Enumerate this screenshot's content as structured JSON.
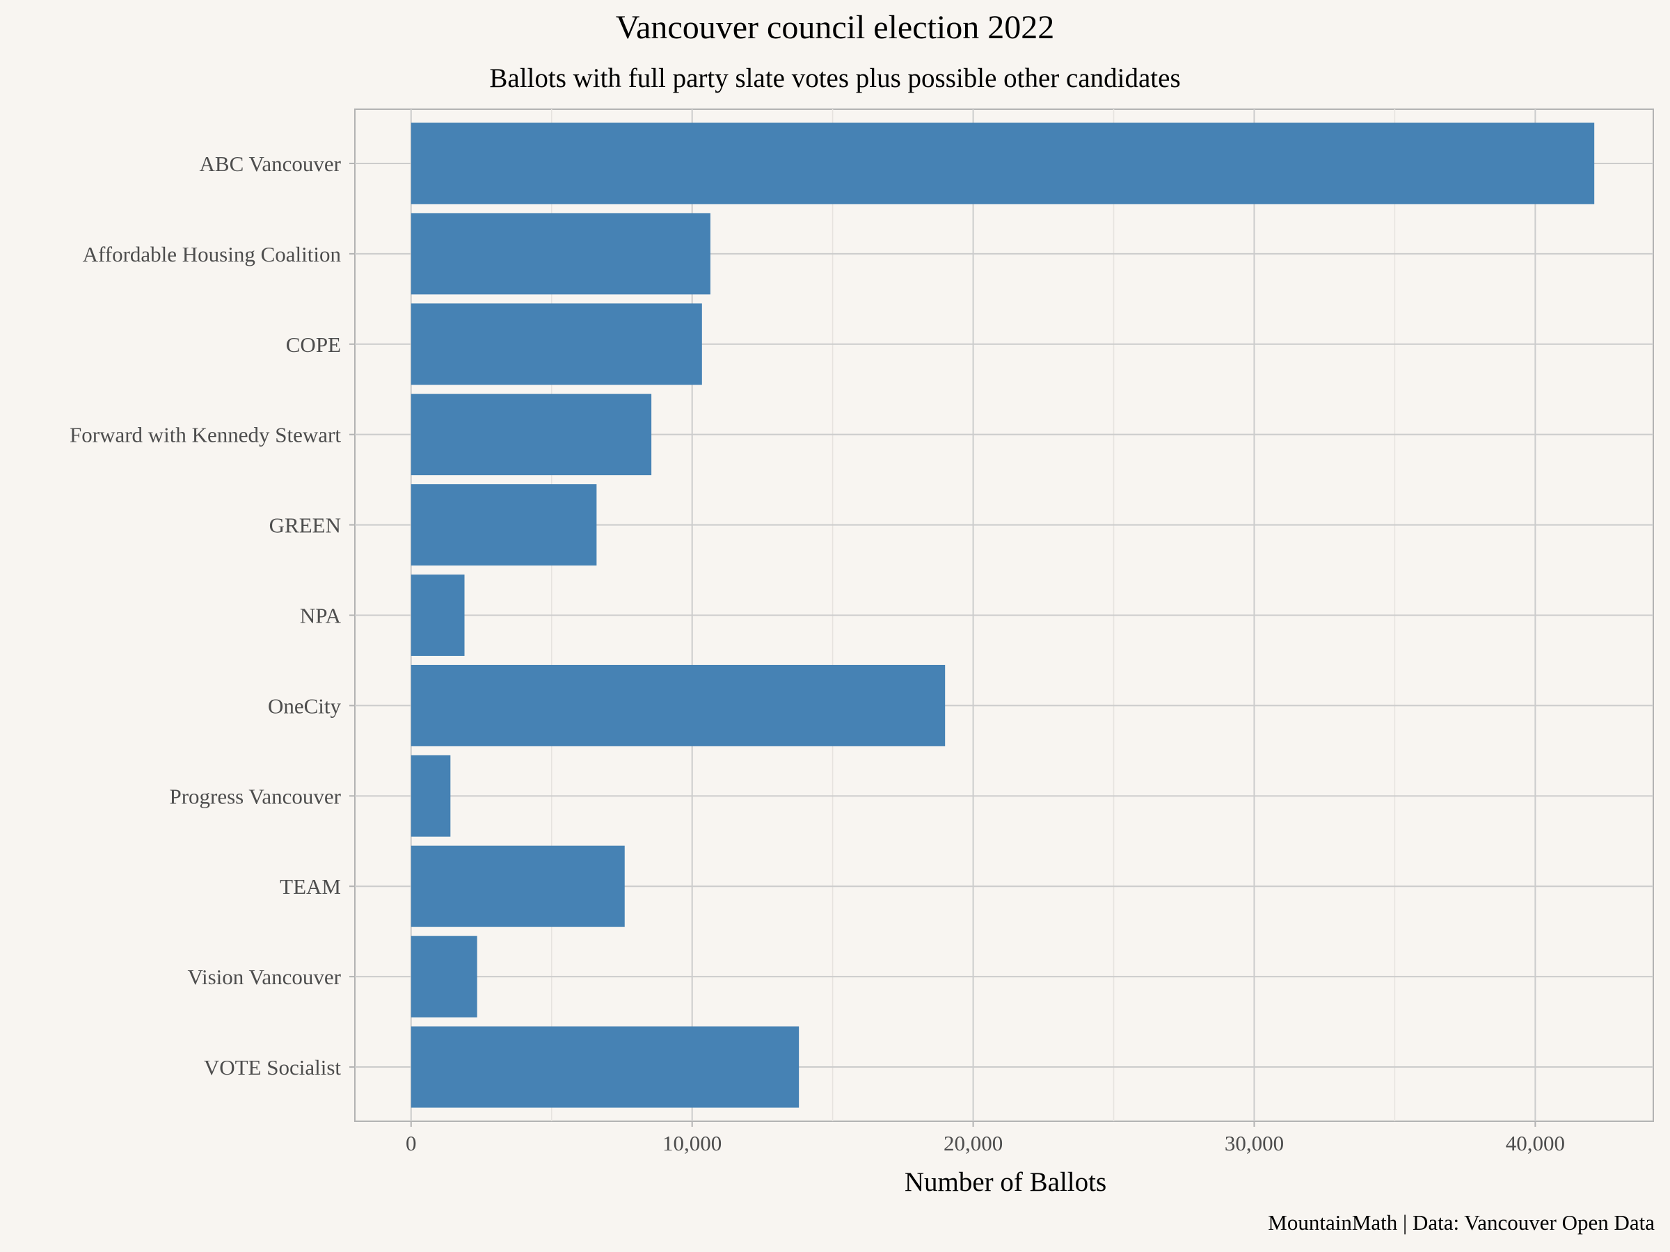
{
  "chart_data": {
    "type": "bar",
    "orientation": "horizontal",
    "title": "Vancouver council election 2022",
    "subtitle": "Ballots with full party slate votes plus possible other candidates",
    "xlabel": "Number of Ballots",
    "ylabel": "",
    "caption": "MountainMath | Data: Vancouver Open Data",
    "categories": [
      "ABC Vancouver",
      "Affordable Housing Coalition",
      "COPE",
      "Forward with Kennedy Stewart",
      "GREEN",
      "NPA",
      "OneCity",
      "Progress Vancouver",
      "TEAM",
      "Vision Vancouver",
      "VOTE Socialist"
    ],
    "values": [
      42100,
      10650,
      10350,
      8550,
      6600,
      1900,
      19000,
      1400,
      7600,
      2350,
      13800
    ],
    "xlim": [
      -2000,
      44200
    ],
    "xticks": [
      0,
      10000,
      20000,
      30000,
      40000
    ],
    "xtick_labels": [
      "0",
      "10,000",
      "20,000",
      "30,000",
      "40,000"
    ],
    "grid": true,
    "colors": {
      "bar": "#4682b4",
      "background": "#f8f5f1",
      "grid_major": "#cccccc",
      "grid_minor": "#e6e3df",
      "panel_border": "#b3b3b3"
    }
  }
}
